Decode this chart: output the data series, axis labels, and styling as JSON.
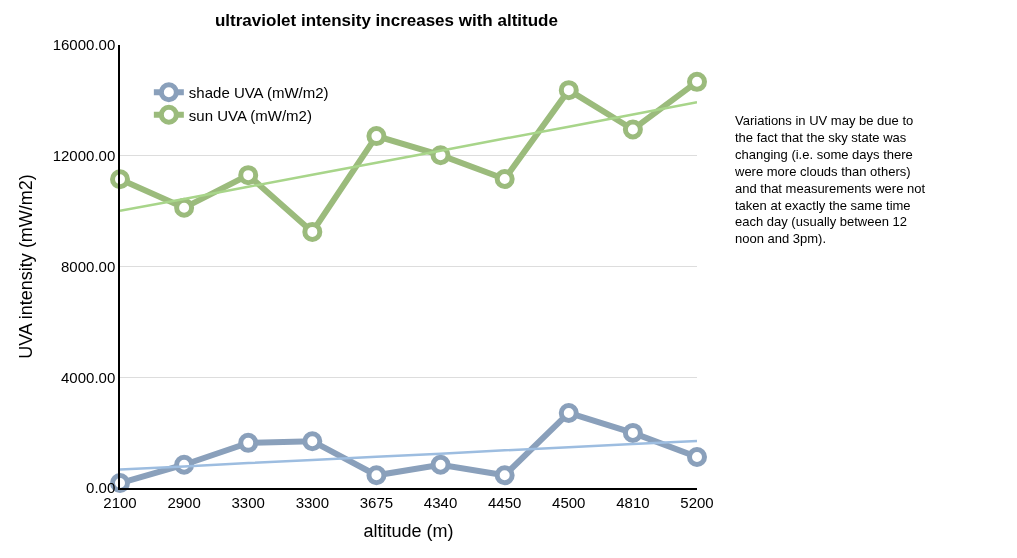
{
  "chart_data": {
    "type": "line",
    "title": "ultraviolet intensity increases with altitude",
    "xlabel": "altitude (m)",
    "ylabel": "UVA intensity (mW/m2)",
    "categories": [
      "2100",
      "2900",
      "3300",
      "3300",
      "3675",
      "4340",
      "4450",
      "4500",
      "4810",
      "5200"
    ],
    "series": [
      {
        "name": "shade UVA (mW/m2)",
        "color": "#8aa0bb",
        "marker": "circle",
        "values": [
          180,
          840,
          1630,
          1690,
          460,
          840,
          460,
          2710,
          1990,
          1120
        ]
      },
      {
        "name": "sun UVA (mW/m2)",
        "color": "#9bbb7c",
        "marker": "circle",
        "values": [
          11150,
          10120,
          11300,
          9250,
          12710,
          12020,
          11160,
          14370,
          12950,
          14670
        ]
      },
      {
        "color": "#9dbde0",
        "marker": "none",
        "values": [
          670,
          780,
          900,
          1010,
          1130,
          1240,
          1360,
          1470,
          1590,
          1700
        ]
      },
      {
        "color": "#a8d58a",
        "marker": "none",
        "values": [
          10010,
          10440,
          10880,
          11310,
          11750,
          12180,
          12620,
          13050,
          13490,
          13930
        ]
      }
    ],
    "ylim": [
      0,
      16000
    ],
    "yticks": [
      {
        "value": 0,
        "label": "0.00"
      },
      {
        "value": 4000,
        "label": "4000.00"
      },
      {
        "value": 8000,
        "label": "8000.00"
      },
      {
        "value": 12000,
        "label": "12000.00"
      },
      {
        "value": 16000,
        "label": "16000.00"
      }
    ],
    "grid": "y",
    "legend": "top left",
    "annotations": [
      "Variations in UV may be due to the fact that the sky state was changing (i.e. some days there were more clouds than others) and that measurements were not taken at exactly the same time each day (usually between 12 noon and 3pm)."
    ]
  }
}
